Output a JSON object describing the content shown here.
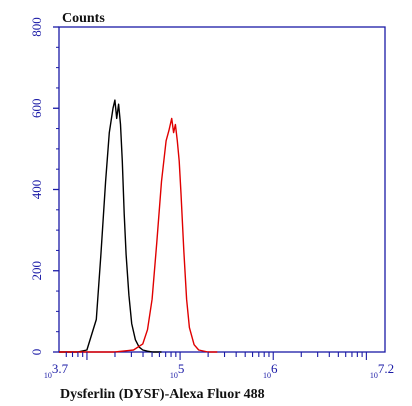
{
  "chart_data": {
    "type": "line",
    "title": "",
    "ylabel": "Counts",
    "xlabel": "Dysferlin (DYSF)-Alexa Fluor 488",
    "x_scale": "log10",
    "xlim": [
      3.7,
      7.2
    ],
    "ylim": [
      0,
      800
    ],
    "y_ticks": [
      0,
      200,
      400,
      600,
      800
    ],
    "x_tick_labels": [
      {
        "base": "10",
        "exp": "3.7",
        "value": 3.7
      },
      {
        "base": "10",
        "exp": "5",
        "value": 5
      },
      {
        "base": "10",
        "exp": "6",
        "value": 6
      },
      {
        "base": "10",
        "exp": "7.2",
        "value": 7.2
      }
    ],
    "grid": false,
    "colors": {
      "axis": "#1a1aa6",
      "frame": "#1a1aa6"
    },
    "series": [
      {
        "color": "#000000",
        "log_x": [
          3.7,
          3.9,
          4.0,
          4.1,
          4.15,
          4.2,
          4.24,
          4.28,
          4.3,
          4.32,
          4.34,
          4.36,
          4.38,
          4.4,
          4.42,
          4.45,
          4.48,
          4.52,
          4.56,
          4.6,
          4.65,
          4.7,
          4.8
        ],
        "y": [
          0,
          0,
          5,
          80,
          240,
          420,
          540,
          600,
          620,
          575,
          610,
          560,
          470,
          340,
          240,
          140,
          70,
          30,
          12,
          5,
          2,
          0,
          0
        ]
      },
      {
        "color": "#e00000",
        "log_x": [
          3.7,
          4.3,
          4.5,
          4.6,
          4.65,
          4.7,
          4.75,
          4.8,
          4.85,
          4.88,
          4.91,
          4.93,
          4.95,
          4.97,
          4.99,
          5.01,
          5.04,
          5.07,
          5.1,
          5.15,
          5.2,
          5.3,
          5.4
        ],
        "y": [
          0,
          0,
          5,
          20,
          55,
          130,
          270,
          420,
          520,
          545,
          575,
          540,
          560,
          520,
          470,
          390,
          250,
          130,
          60,
          18,
          5,
          0,
          0
        ]
      }
    ]
  }
}
